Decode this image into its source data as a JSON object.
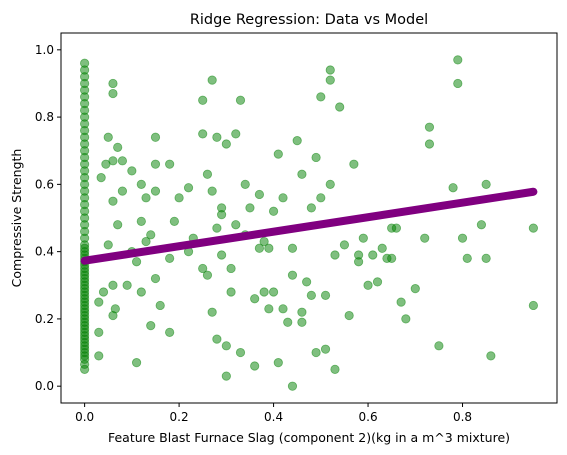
{
  "chart_data": {
    "type": "scatter",
    "title": "Ridge Regression: Data vs Model",
    "xlabel": "Feature Blast Furnace Slag (component 2)(kg in a m^3 mixture)",
    "ylabel": "Compressive Strength",
    "xlim": [
      -0.05,
      1.0
    ],
    "ylim": [
      -0.05,
      1.05
    ],
    "xticks": [
      "0.0",
      "0.2",
      "0.4",
      "0.6",
      "0.8"
    ],
    "yticks": [
      "0.0",
      "0.2",
      "0.4",
      "0.6",
      "0.8",
      "1.0"
    ],
    "grid": false,
    "colors": {
      "scatter": "#008000",
      "model": "#800080",
      "axes": "#000000"
    },
    "model_line": {
      "x": [
        0.0,
        0.95
      ],
      "y": [
        0.373,
        0.578
      ]
    },
    "series": [
      {
        "type": "scatter",
        "x": [
          0,
          0,
          0,
          0,
          0,
          0,
          0,
          0,
          0,
          0,
          0,
          0,
          0,
          0,
          0,
          0,
          0,
          0,
          0,
          0,
          0,
          0,
          0,
          0,
          0,
          0,
          0,
          0,
          0,
          0,
          0,
          0,
          0,
          0,
          0,
          0,
          0,
          0,
          0,
          0,
          0,
          0,
          0,
          0,
          0,
          0,
          0,
          0,
          0,
          0,
          0,
          0,
          0,
          0,
          0,
          0,
          0,
          0,
          0,
          0,
          0,
          0,
          0,
          0,
          0.03,
          0.03,
          0.03,
          0.035,
          0.04,
          0.045,
          0.05,
          0.05,
          0.06,
          0.06,
          0.06,
          0.06,
          0.06,
          0.06,
          0.065,
          0.07,
          0.07,
          0.08,
          0.08,
          0.09,
          0.1,
          0.1,
          0.11,
          0.11,
          0.12,
          0.12,
          0.13,
          0.14,
          0.14,
          0.15,
          0.15,
          0.15,
          0.16,
          0.12,
          0.13,
          0.15,
          0.18,
          0.18,
          0.18,
          0.19,
          0.2,
          0.22,
          0.22,
          0.23,
          0.25,
          0.25,
          0.26,
          0.26,
          0.27,
          0.27,
          0.27,
          0.28,
          0.28,
          0.28,
          0.29,
          0.29,
          0.3,
          0.3,
          0.31,
          0.31,
          0.32,
          0.33,
          0.34,
          0.35,
          0.36,
          0.37,
          0.38,
          0.39,
          0.4,
          0.4,
          0.41,
          0.42,
          0.42,
          0.43,
          0.44,
          0.44,
          0.45,
          0.46,
          0.46,
          0.47,
          0.48,
          0.48,
          0.49,
          0.5,
          0.5,
          0.51,
          0.52,
          0.52,
          0.52,
          0.53,
          0.54,
          0.55,
          0.56,
          0.57,
          0.58,
          0.58,
          0.59,
          0.6,
          0.61,
          0.62,
          0.63,
          0.64,
          0.65,
          0.65,
          0.66,
          0.67,
          0.68,
          0.7,
          0.72,
          0.73,
          0.73,
          0.75,
          0.78,
          0.79,
          0.79,
          0.8,
          0.81,
          0.84,
          0.85,
          0.85,
          0.86,
          0.95,
          0.95,
          0.3,
          0.33,
          0.36,
          0.38,
          0.41,
          0.44,
          0.46,
          0.49,
          0.51,
          0.53,
          0.37,
          0.34,
          0.29,
          0.25,
          0.32,
          0.39
        ],
        "y": [
          0.05,
          0.08,
          0.1,
          0.12,
          0.14,
          0.16,
          0.18,
          0.2,
          0.22,
          0.24,
          0.26,
          0.28,
          0.3,
          0.32,
          0.34,
          0.36,
          0.38,
          0.4,
          0.42,
          0.44,
          0.46,
          0.48,
          0.5,
          0.52,
          0.54,
          0.56,
          0.58,
          0.6,
          0.62,
          0.64,
          0.66,
          0.68,
          0.7,
          0.72,
          0.74,
          0.76,
          0.78,
          0.8,
          0.82,
          0.84,
          0.86,
          0.88,
          0.9,
          0.92,
          0.94,
          0.96,
          0.065,
          0.09,
          0.11,
          0.13,
          0.15,
          0.17,
          0.19,
          0.21,
          0.23,
          0.25,
          0.27,
          0.29,
          0.31,
          0.33,
          0.35,
          0.37,
          0.39,
          0.41,
          0.16,
          0.25,
          0.09,
          0.62,
          0.28,
          0.66,
          0.42,
          0.74,
          0.21,
          0.3,
          0.55,
          0.67,
          0.87,
          0.9,
          0.23,
          0.71,
          0.48,
          0.58,
          0.67,
          0.3,
          0.4,
          0.64,
          0.37,
          0.07,
          0.6,
          0.28,
          0.56,
          0.18,
          0.45,
          0.32,
          0.66,
          0.74,
          0.24,
          0.49,
          0.43,
          0.58,
          0.16,
          0.38,
          0.66,
          0.49,
          0.56,
          0.4,
          0.59,
          0.44,
          0.35,
          0.75,
          0.33,
          0.63,
          0.22,
          0.58,
          0.91,
          0.14,
          0.47,
          0.74,
          0.51,
          0.39,
          0.72,
          0.12,
          0.35,
          0.28,
          0.48,
          0.85,
          0.6,
          0.53,
          0.26,
          0.57,
          0.43,
          0.41,
          0.52,
          0.28,
          0.69,
          0.56,
          0.23,
          0.19,
          0.33,
          0.41,
          0.73,
          0.63,
          0.22,
          0.31,
          0.27,
          0.53,
          0.68,
          0.86,
          0.56,
          0.27,
          0.6,
          0.94,
          0.91,
          0.39,
          0.83,
          0.42,
          0.21,
          0.66,
          0.37,
          0.39,
          0.44,
          0.3,
          0.39,
          0.31,
          0.41,
          0.38,
          0.38,
          0.47,
          0.47,
          0.25,
          0.2,
          0.29,
          0.44,
          0.72,
          0.77,
          0.12,
          0.59,
          0.97,
          0.9,
          0.44,
          0.38,
          0.48,
          0.38,
          0.6,
          0.09,
          0.24,
          0.47,
          0.03,
          0.1,
          0.06,
          0.28,
          0.07,
          0.0,
          0.19,
          0.1,
          0.11,
          0.05,
          0.41,
          0.45,
          0.53,
          0.85,
          0.75,
          0.23
        ]
      }
    ]
  }
}
